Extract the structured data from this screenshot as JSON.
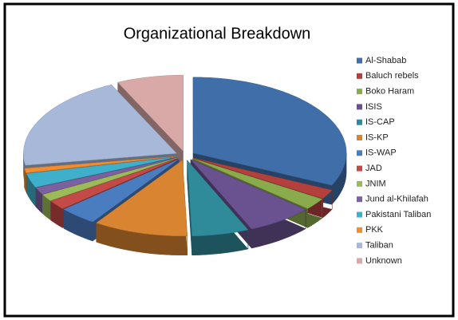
{
  "chart_data": {
    "type": "pie",
    "title": "Organizational Breakdown",
    "categories": [
      "Al-Shabab",
      "Baluch rebels",
      "Boko Haram",
      "ISIS",
      "IS-CAP",
      "IS-KP",
      "IS-WAP",
      "JAD",
      "JNIM",
      "Jund al-Khilafah",
      "Pakistani Taliban",
      "PKK",
      "Taliban",
      "Unknown"
    ],
    "values": [
      32,
      2,
      2.5,
      7,
      6,
      10,
      4,
      2,
      1.5,
      1.5,
      3,
      1,
      20.5,
      7
    ],
    "colors": [
      "#3f6ea8",
      "#b3403d",
      "#8aab4c",
      "#6a5190",
      "#2f8a99",
      "#d98430",
      "#4a7cc0",
      "#c44a47",
      "#9bbb59",
      "#7d60a0",
      "#3fb0cc",
      "#f28c2f",
      "#a7b8d9",
      "#d9a9a8"
    ],
    "legend": "right"
  }
}
